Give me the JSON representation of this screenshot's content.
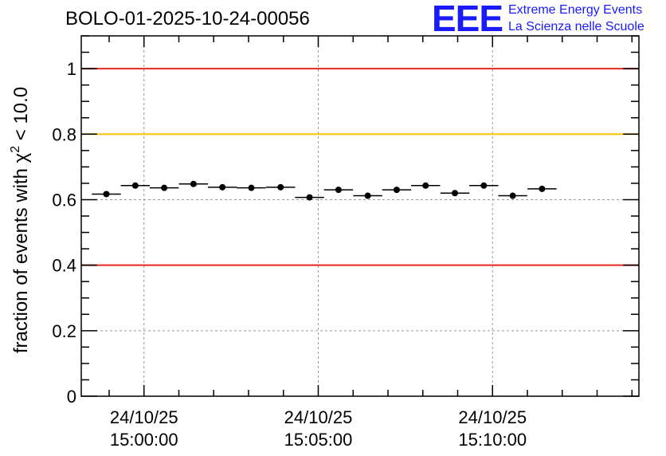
{
  "chart_data": {
    "type": "scatter",
    "title": "BOLO-01-2025-10-24-00056",
    "ylabel_main": "fraction of events with χ",
    "ylabel_sup": "2",
    "ylabel_tail": " < 10.0",
    "ylim": [
      0,
      1.1
    ],
    "yticks": [
      0,
      0.2,
      0.4,
      0.6,
      0.8,
      1
    ],
    "ytick_labels": [
      "0",
      "0.2",
      "0.4",
      "0.6",
      "0.8",
      "1"
    ],
    "xlim_minutes": [
      -1.8,
      14.2
    ],
    "xticks_minutes": [
      0,
      5,
      10
    ],
    "xtick_labels": [
      {
        "date": "24/10/25",
        "time": "15:00:00"
      },
      {
        "date": "24/10/25",
        "time": "15:05:00"
      },
      {
        "date": "24/10/25",
        "time": "15:10:00"
      }
    ],
    "grid": true,
    "reference_lines": [
      {
        "y": 1.0,
        "color": "#e8261d"
      },
      {
        "y": 0.8,
        "color": "#ffc200"
      },
      {
        "y": 0.4,
        "color": "#e8261d"
      }
    ],
    "bin_width_minutes": 0.833,
    "points": [
      {
        "x": -1.08,
        "y": 0.617
      },
      {
        "x": -0.25,
        "y": 0.643
      },
      {
        "x": 0.58,
        "y": 0.636
      },
      {
        "x": 1.42,
        "y": 0.648
      },
      {
        "x": 2.25,
        "y": 0.638
      },
      {
        "x": 3.08,
        "y": 0.636
      },
      {
        "x": 3.92,
        "y": 0.638
      },
      {
        "x": 4.75,
        "y": 0.607
      },
      {
        "x": 5.58,
        "y": 0.63
      },
      {
        "x": 6.42,
        "y": 0.612
      },
      {
        "x": 7.25,
        "y": 0.63
      },
      {
        "x": 8.08,
        "y": 0.643
      },
      {
        "x": 8.92,
        "y": 0.62
      },
      {
        "x": 9.75,
        "y": 0.643
      },
      {
        "x": 10.58,
        "y": 0.612
      },
      {
        "x": 11.42,
        "y": 0.633
      }
    ]
  },
  "logo": {
    "mark": "EEE",
    "line1": "Extreme Energy Events",
    "line2": "La Scienza nelle Scuole",
    "color": "#1a1aff"
  }
}
